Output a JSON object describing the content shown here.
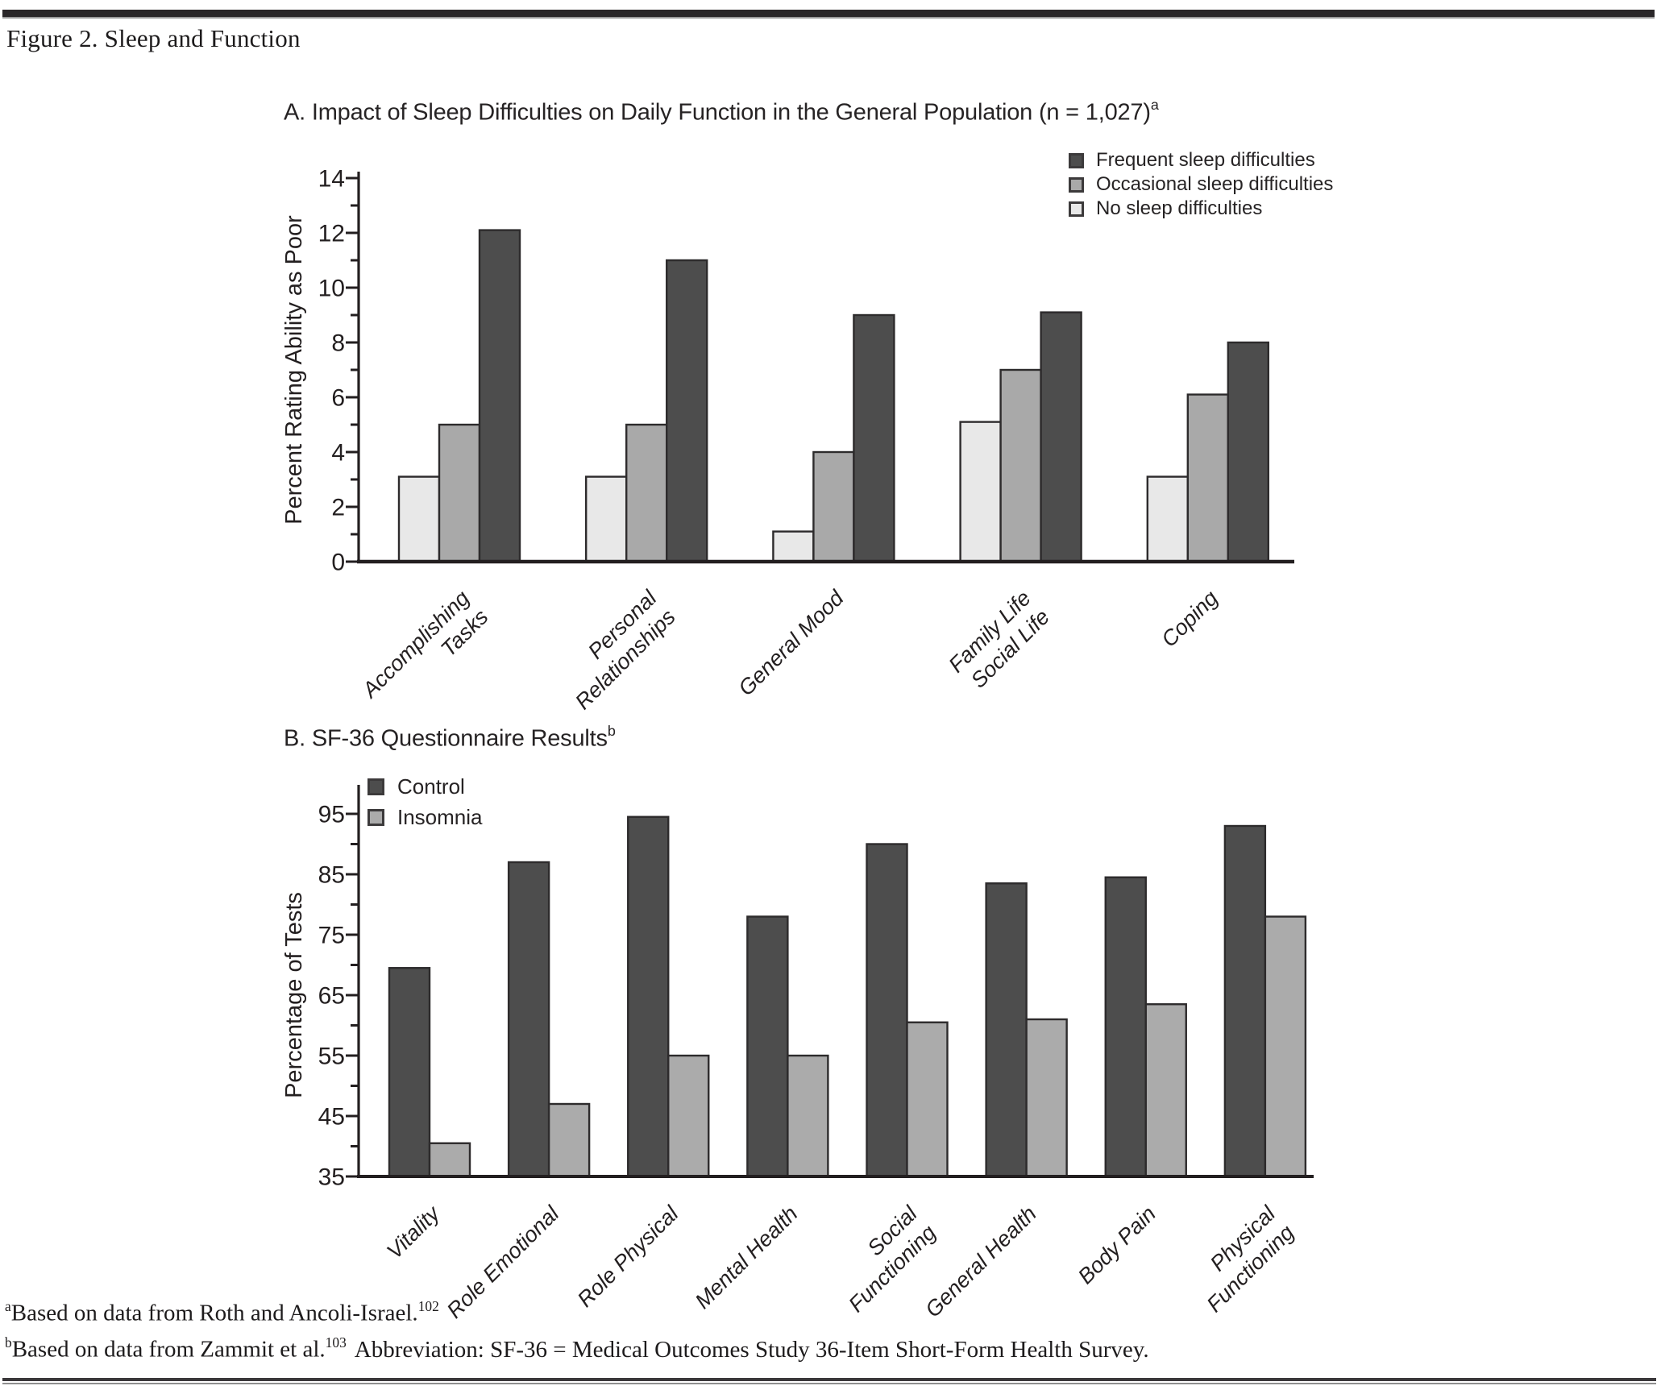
{
  "page": {
    "figure_label": "Figure 2. Sleep and Function"
  },
  "colors": {
    "bar_stroke": "#2d2b2c",
    "axis": "#231f20",
    "dark_bar": "#4d4d4d",
    "medium_bar": "#a9a9a9",
    "light_bar": "#e8e8e8"
  },
  "chart_data": [
    {
      "id": "chart-a",
      "type": "bar",
      "title": "A. Impact of Sleep Difficulties on Daily Function in the General Population (n = 1,027)",
      "title_sup": "a",
      "ylabel": "Percent Rating Ability as Poor",
      "xlabel": "",
      "ylim": [
        0,
        14
      ],
      "ytick_major": 2,
      "ytick_minor": 1,
      "grid": false,
      "legend_position": "top-right",
      "categories": [
        [
          "Accomplishing",
          "Tasks"
        ],
        [
          "Personal",
          "Relationships"
        ],
        [
          "General Mood"
        ],
        [
          "Family Life",
          "Social Life"
        ],
        [
          "Coping"
        ]
      ],
      "series": [
        {
          "name": "No sleep difficulties",
          "color": "#e8e8e8",
          "values": [
            3.1,
            3.1,
            1.1,
            5.1,
            3.1
          ]
        },
        {
          "name": "Occasional sleep difficulties",
          "color": "#a9a9a9",
          "values": [
            5,
            5,
            4,
            7,
            6.1
          ]
        },
        {
          "name": "Frequent sleep difficulties",
          "color": "#4d4d4d",
          "values": [
            12.1,
            11,
            9,
            9.1,
            8
          ]
        }
      ],
      "legend_order": [
        "Frequent sleep difficulties",
        "Occasional sleep difficulties",
        "No sleep difficulties"
      ]
    },
    {
      "id": "chart-b",
      "type": "bar",
      "title": "B. SF-36 Questionnaire Results",
      "title_sup": "b",
      "ylabel": "Percentage of Tests",
      "xlabel": "",
      "ylim": [
        35,
        95
      ],
      "ytick_major": 10,
      "ytick_minor": 5,
      "grid": false,
      "legend_position": "top-left-inside",
      "categories": [
        [
          "Vitality"
        ],
        [
          "Role Emotional"
        ],
        [
          "Role Physical"
        ],
        [
          "Mental Health"
        ],
        [
          "Social",
          "Functioning"
        ],
        [
          "General Health"
        ],
        [
          "Body Pain"
        ],
        [
          "Physical",
          "Functioning"
        ]
      ],
      "series": [
        {
          "name": "Control",
          "color": "#4d4d4d",
          "values": [
            69.5,
            87,
            94.5,
            78,
            90,
            83.5,
            84.5,
            93
          ]
        },
        {
          "name": "Insomnia",
          "color": "#ababab",
          "values": [
            40.5,
            47,
            55,
            55,
            60.5,
            61,
            63.5,
            78
          ]
        }
      ],
      "legend_order": [
        "Control",
        "Insomnia"
      ]
    }
  ],
  "footnotes": {
    "a": {
      "marker": "a",
      "text": "Based on data from Roth and Ancoli-Israel.",
      "ref": "102"
    },
    "b": {
      "marker": "b",
      "text": "Based on data from Zammit et al.",
      "ref": "103",
      "text2": "Abbreviation: SF-36 = Medical Outcomes Study 36-Item Short-Form Health Survey."
    }
  }
}
